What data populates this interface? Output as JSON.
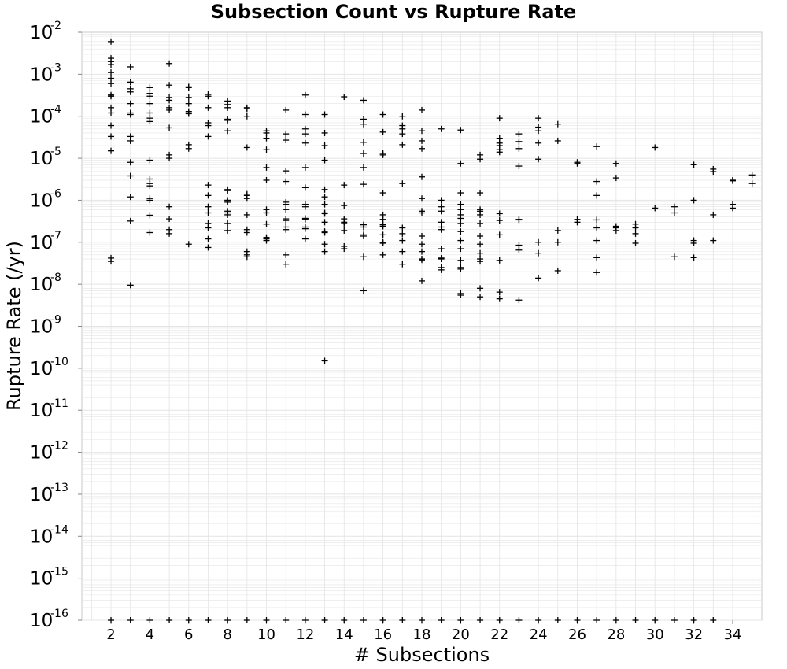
{
  "chart_data": {
    "type": "scatter",
    "title": "Subsection Count vs Rupture Rate",
    "xlabel": "# Subsections",
    "ylabel": "Rupture Rate (/yr)",
    "xlim": [
      0.5,
      35.5
    ],
    "ylim": [
      1e-16,
      0.01
    ],
    "yscale": "log",
    "grid": true,
    "marker": "plus",
    "marker_color": "#000000",
    "grid_color": "#e4e4e4",
    "x_ticks": [
      "2",
      "4",
      "6",
      "8",
      "10",
      "12",
      "14",
      "16",
      "18",
      "20",
      "22",
      "24",
      "26",
      "28",
      "30",
      "32",
      "34"
    ],
    "y_ticks": [
      {
        "base": "10",
        "exp": "-2"
      },
      {
        "base": "10",
        "exp": "-3"
      },
      {
        "base": "10",
        "exp": "-4"
      },
      {
        "base": "10",
        "exp": "-5"
      },
      {
        "base": "10",
        "exp": "-6"
      },
      {
        "base": "10",
        "exp": "-7"
      },
      {
        "base": "10",
        "exp": "-8"
      },
      {
        "base": "10",
        "exp": "-9"
      },
      {
        "base": "10",
        "exp": "-10"
      },
      {
        "base": "10",
        "exp": "-11"
      },
      {
        "base": "10",
        "exp": "-12"
      },
      {
        "base": "10",
        "exp": "-13"
      },
      {
        "base": "10",
        "exp": "-14"
      },
      {
        "base": "10",
        "exp": "-15"
      },
      {
        "base": "10",
        "exp": "-16"
      }
    ],
    "points": [
      {
        "x": 2,
        "y": [
          0.006,
          0.0024,
          0.002,
          0.0017,
          0.0011,
          0.0008,
          0.0006,
          0.00032,
          0.0003,
          0.00016,
          0.00012,
          6e-05,
          3.3e-05,
          1.5e-05,
          4.2e-08,
          3.5e-08,
          1e-16
        ]
      },
      {
        "x": 3,
        "y": [
          0.0015,
          0.00065,
          0.00045,
          0.00038,
          0.0002,
          0.00012,
          0.00011,
          3.3e-05,
          2.6e-05,
          8e-06,
          3.8e-06,
          1.2e-06,
          3.2e-07,
          9.5e-09,
          1e-16
        ]
      },
      {
        "x": 4,
        "y": [
          0.00048,
          0.00035,
          0.0003,
          0.0002,
          0.00012,
          9e-05,
          7.5e-05,
          9e-06,
          3.2e-06,
          2.5e-06,
          2.2e-06,
          1.1e-06,
          1e-06,
          4.4e-07,
          1.7e-07,
          1e-16
        ]
      },
      {
        "x": 5,
        "y": [
          0.0018,
          0.00055,
          0.00028,
          0.00024,
          0.00016,
          0.00014,
          5.3e-05,
          1.2e-05,
          1e-05,
          7e-07,
          3.6e-07,
          2e-07,
          1.6e-07,
          1e-16
        ]
      },
      {
        "x": 6,
        "y": [
          0.0005,
          0.00048,
          0.00028,
          0.0002,
          0.00013,
          0.00012,
          0.000115,
          2.1e-05,
          1.7e-05,
          9e-08,
          1e-16
        ]
      },
      {
        "x": 7,
        "y": [
          0.00033,
          0.0003,
          0.00016,
          7e-05,
          6e-05,
          3.3e-05,
          2.3e-06,
          1.3e-06,
          7e-07,
          5e-07,
          2.8e-07,
          2.2e-07,
          1.2e-07,
          7.5e-08,
          1e-16
        ]
      },
      {
        "x": 8,
        "y": [
          0.00023,
          0.00019,
          0.00016,
          8.5e-05,
          8e-05,
          4.5e-05,
          1.8e-06,
          1.7e-06,
          1e-06,
          9e-07,
          5.5e-07,
          5e-07,
          4.5e-07,
          2.8e-07,
          1.9e-07,
          1e-16
        ]
      },
      {
        "x": 9,
        "y": [
          0.00016,
          0.00015,
          0.0001,
          1.8e-05,
          1.4e-06,
          1.3e-06,
          1.1e-06,
          4.5e-07,
          2e-07,
          1.7e-07,
          6e-08,
          5e-08,
          4.5e-08,
          1e-16
        ]
      },
      {
        "x": 10,
        "y": [
          4.5e-05,
          4e-05,
          3e-05,
          1.6e-05,
          6e-06,
          3e-06,
          6e-07,
          5e-07,
          2.7e-07,
          1.3e-07,
          1.2e-07,
          1.1e-07,
          1e-16
        ]
      },
      {
        "x": 11,
        "y": [
          0.00014,
          3.8e-05,
          2.7e-05,
          5e-06,
          2.8e-06,
          9e-07,
          8e-07,
          6e-07,
          3.6e-07,
          3.3e-07,
          2.3e-07,
          2e-07,
          5e-08,
          3e-08,
          1e-16
        ]
      },
      {
        "x": 12,
        "y": [
          0.00032,
          0.00011,
          5e-05,
          3.8e-05,
          2.3e-05,
          6e-06,
          2e-06,
          8e-07,
          7e-07,
          3.7e-07,
          3.5e-07,
          2.3e-07,
          2.1e-07,
          1.2e-07,
          1e-16
        ]
      },
      {
        "x": 13,
        "y": [
          0.00011,
          4e-05,
          2e-05,
          9e-06,
          1.8e-06,
          1.2e-06,
          8e-07,
          5e-07,
          4.8e-07,
          3e-07,
          1.8e-07,
          1.7e-07,
          9e-08,
          6e-08,
          1.5e-10,
          1e-16
        ]
      },
      {
        "x": 14,
        "y": [
          0.00029,
          2.3e-06,
          7.5e-07,
          3.6e-07,
          3e-07,
          2.8e-07,
          1.9e-07,
          8e-08,
          7e-08,
          1e-16
        ]
      },
      {
        "x": 15,
        "y": [
          0.00024,
          8.5e-05,
          6.5e-05,
          2.4e-05,
          1.3e-05,
          6e-06,
          2.4e-06,
          2.6e-07,
          2.3e-07,
          1.5e-07,
          1.4e-07,
          4.5e-08,
          7e-09,
          1e-16
        ]
      },
      {
        "x": 16,
        "y": [
          0.00011,
          4.2e-05,
          1.3e-05,
          1.2e-05,
          1.5e-06,
          4.5e-07,
          3.5e-07,
          2.6e-07,
          2.4e-07,
          1.5e-07,
          1e-07,
          9.5e-08,
          5e-08,
          1e-16
        ]
      },
      {
        "x": 17,
        "y": [
          0.0001,
          6e-05,
          5e-05,
          3.8e-05,
          2.1e-05,
          2.5e-06,
          2.2e-07,
          1.6e-07,
          1.1e-07,
          6e-08,
          3e-08,
          1e-16
        ]
      },
      {
        "x": 18,
        "y": [
          0.00014,
          4.5e-05,
          2.6e-05,
          1.7e-05,
          3.6e-06,
          1.1e-06,
          5.5e-07,
          5e-07,
          1.4e-07,
          9e-08,
          6e-08,
          4e-08,
          3.8e-08,
          1.2e-08,
          1e-16
        ]
      },
      {
        "x": 19,
        "y": [
          5e-05,
          1e-06,
          7e-07,
          5.5e-07,
          3e-07,
          2.3e-07,
          2e-07,
          7e-08,
          4.2e-08,
          4e-08,
          2.5e-08,
          2.2e-08,
          1e-16
        ]
      },
      {
        "x": 20,
        "y": [
          4.7e-05,
          7.5e-06,
          1.5e-06,
          8e-07,
          6e-07,
          4.5e-07,
          3.7e-07,
          2.8e-07,
          1.8e-07,
          1.1e-07,
          7e-08,
          3.7e-08,
          2.5e-08,
          2.3e-08,
          6e-09,
          5.5e-09,
          1e-16
        ]
      },
      {
        "x": 21,
        "y": [
          1.2e-05,
          9.5e-06,
          1.5e-06,
          6e-07,
          5.5e-07,
          4.5e-07,
          2.8e-07,
          1.4e-07,
          9e-08,
          5.5e-08,
          4e-08,
          3.5e-08,
          8e-09,
          5e-09,
          1e-16
        ]
      },
      {
        "x": 22,
        "y": [
          9e-05,
          3e-05,
          2.3e-05,
          2e-05,
          1.6e-05,
          1.4e-05,
          4.8e-07,
          3.3e-07,
          1.5e-07,
          3.7e-08,
          6.5e-09,
          4.5e-09,
          1e-16
        ]
      },
      {
        "x": 23,
        "y": [
          3.8e-05,
          2.5e-05,
          1.7e-05,
          6.5e-06,
          3.5e-07,
          3.4e-07,
          8.5e-08,
          6.5e-08,
          4.2e-09,
          1e-16
        ]
      },
      {
        "x": 24,
        "y": [
          9e-05,
          5.5e-05,
          4.5e-05,
          2.3e-05,
          9.5e-06,
          1e-07,
          5.5e-08,
          1.4e-08,
          1e-16
        ]
      },
      {
        "x": 25,
        "y": [
          6.5e-05,
          2.6e-05,
          1.9e-07,
          1e-07,
          2.1e-08,
          1e-16
        ]
      },
      {
        "x": 26,
        "y": [
          8e-06,
          7.5e-06,
          3.5e-07,
          3e-07,
          1e-16
        ]
      },
      {
        "x": 27,
        "y": [
          1.9e-05,
          2.8e-06,
          1.3e-06,
          3.4e-07,
          2.2e-07,
          1.1e-07,
          4.3e-08,
          1.9e-08,
          1e-16
        ]
      },
      {
        "x": 28,
        "y": [
          7.5e-06,
          3.4e-06,
          2.4e-07,
          2.2e-07,
          1.9e-07,
          1e-16
        ]
      },
      {
        "x": 29,
        "y": [
          2.7e-07,
          2.2e-07,
          1.6e-07,
          9.5e-08,
          1e-16
        ]
      },
      {
        "x": 30,
        "y": [
          1.8e-05,
          6.5e-07,
          1e-16
        ]
      },
      {
        "x": 31,
        "y": [
          7e-07,
          5e-07,
          4.5e-08,
          1e-16
        ]
      },
      {
        "x": 32,
        "y": [
          7e-06,
          1e-06,
          1.1e-07,
          9.5e-08,
          4.3e-08,
          1e-16
        ]
      },
      {
        "x": 33,
        "y": [
          5.5e-06,
          4.8e-06,
          4.5e-07,
          1.1e-07,
          1e-16
        ]
      },
      {
        "x": 34,
        "y": [
          3e-06,
          2.9e-06,
          8e-07,
          6.5e-07
        ]
      },
      {
        "x": 35,
        "y": [
          4e-06,
          2.5e-06
        ]
      }
    ]
  }
}
